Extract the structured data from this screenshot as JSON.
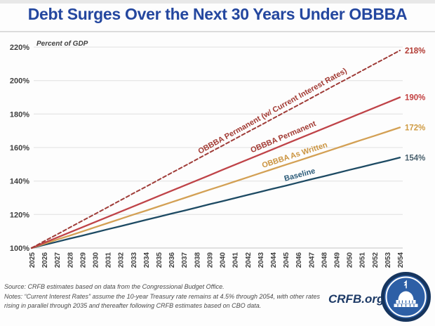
{
  "header": {
    "title": "Debt Surges Over the Next 30 Years Under OBBBA"
  },
  "chart_data": {
    "type": "line",
    "title": "Debt Surges Over the Next 30 Years Under OBBBA",
    "annotation": "Percent of GDP",
    "xlabel": "",
    "ylabel": "Percent of GDP",
    "x": [
      2025,
      2026,
      2027,
      2028,
      2029,
      2030,
      2031,
      2032,
      2033,
      2034,
      2035,
      2036,
      2037,
      2038,
      2039,
      2040,
      2041,
      2042,
      2043,
      2044,
      2045,
      2046,
      2047,
      2048,
      2049,
      2050,
      2051,
      2052,
      2053,
      2054
    ],
    "ylim": [
      100,
      220
    ],
    "y_ticks": [
      100,
      120,
      140,
      160,
      180,
      200,
      220
    ],
    "y_tick_suffix": "%",
    "grid": "horizontal",
    "legend_position": "inline-labels",
    "series": [
      {
        "name": "Baseline",
        "end_label": "154%",
        "color": "#1d4a63",
        "label_color": "#2a5a78",
        "end_label_color": "#4a616e",
        "dashed": false,
        "values": [
          100.0,
          101.9,
          103.7,
          105.6,
          107.4,
          109.3,
          111.2,
          113.0,
          114.9,
          116.8,
          118.6,
          120.5,
          122.3,
          124.2,
          126.1,
          127.9,
          129.8,
          131.7,
          133.5,
          135.4,
          137.2,
          139.1,
          141.0,
          142.8,
          144.7,
          146.6,
          148.4,
          150.3,
          152.1,
          154.0
        ]
      },
      {
        "name": "OBBBA As Written",
        "end_label": "172%",
        "color": "#d3a054",
        "label_color": "#cb9440",
        "end_label_color": "#cf9b43",
        "dashed": false,
        "values": [
          100.0,
          102.5,
          105.0,
          107.4,
          109.9,
          112.4,
          114.9,
          117.4,
          119.9,
          122.3,
          124.8,
          127.3,
          129.8,
          132.3,
          134.8,
          137.2,
          139.7,
          142.2,
          144.7,
          147.2,
          149.7,
          152.1,
          154.6,
          157.1,
          159.6,
          162.1,
          164.6,
          167.0,
          169.5,
          172.0
        ]
      },
      {
        "name": "OBBBA Permanent",
        "end_label": "190%",
        "color": "#bf4348",
        "label_color": "#a23a33",
        "end_label_color": "#c24040",
        "dashed": false,
        "values": [
          100.0,
          103.1,
          106.2,
          109.3,
          112.4,
          115.5,
          118.6,
          121.7,
          124.8,
          127.9,
          131.0,
          134.1,
          137.2,
          140.3,
          143.4,
          146.6,
          149.7,
          152.8,
          155.9,
          159.0,
          162.1,
          165.2,
          168.3,
          171.4,
          174.5,
          177.6,
          180.7,
          183.8,
          186.9,
          190.0
        ]
      },
      {
        "name": "OBBBA Permanent (w/ Current Interest Rates)",
        "end_label": "218%",
        "color": "#9f3c38",
        "label_color": "#a23a33",
        "end_label_color": "#b23b33",
        "dashed": true,
        "values": [
          100.0,
          104.1,
          108.1,
          112.2,
          116.3,
          120.3,
          124.4,
          128.5,
          132.6,
          136.6,
          140.7,
          144.8,
          148.8,
          152.9,
          157.0,
          161.0,
          165.1,
          169.2,
          173.2,
          177.3,
          181.4,
          185.4,
          189.5,
          193.6,
          197.7,
          201.7,
          205.8,
          209.9,
          213.9,
          218.0
        ]
      }
    ]
  },
  "footer": {
    "source_line1": "Source: CRFB estimates based on data from the Congressional Budget Office.",
    "source_line2": "Notes: “Current Interest Rates” assume the 10-year Treasury rate remains at 4.5% through 2054, with other rates",
    "source_line3": "rising in parallel through 2035 and thereafter following CRFB estimates based on CBO data.",
    "brand": "CRFB.org"
  }
}
